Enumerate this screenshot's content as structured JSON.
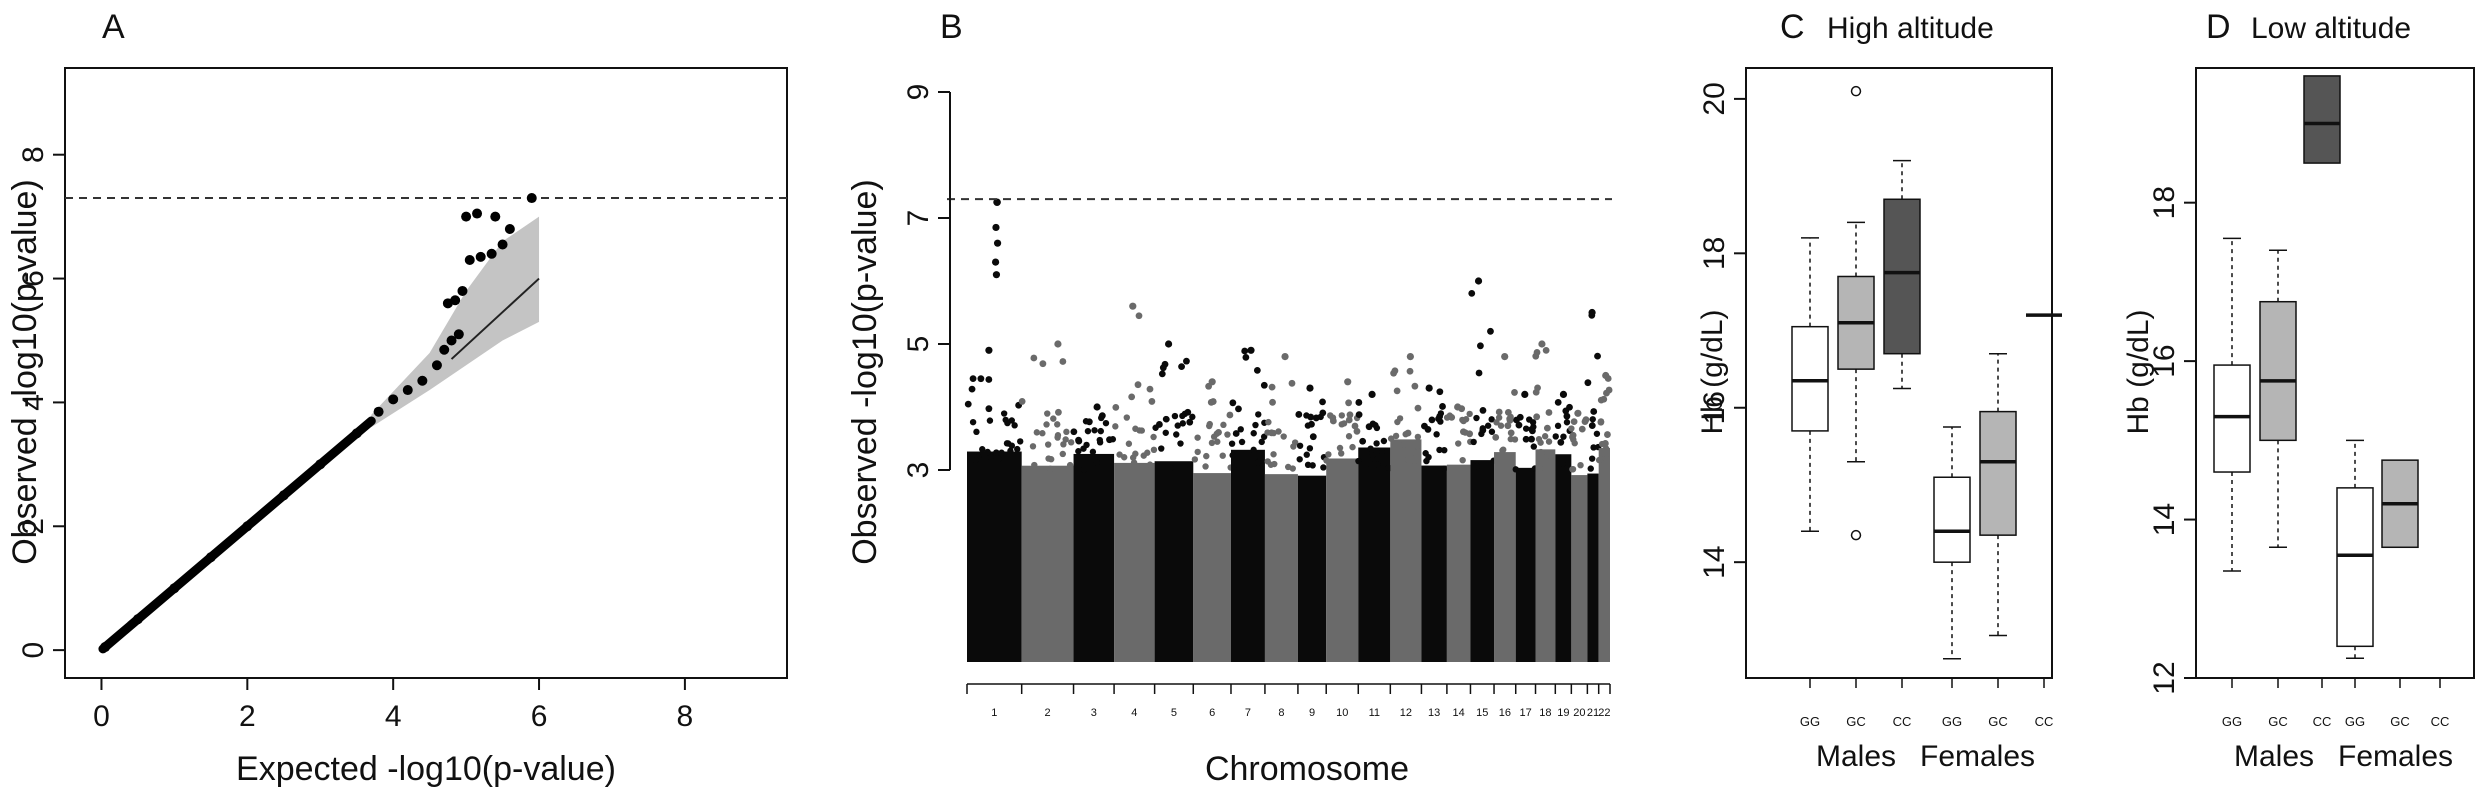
{
  "chart_data": [
    {
      "panel": "A",
      "type": "scatter",
      "xlabel": "Expected -log10(p-value)",
      "ylabel": "Observed -log10(p-value)",
      "xlim": [
        0,
        9.4
      ],
      "ylim": [
        0,
        9.4
      ],
      "xticks": [
        0,
        2,
        4,
        6,
        8
      ],
      "yticks": [
        0,
        2,
        4,
        6,
        8
      ],
      "threshold": 7.3,
      "series": [
        {
          "points": [
            [
              0.05,
              0.05
            ],
            [
              0.5,
              0.5
            ],
            [
              1.0,
              1.0
            ],
            [
              1.5,
              1.5
            ],
            [
              2.0,
              2.0
            ],
            [
              2.5,
              2.5
            ],
            [
              3.0,
              3.0
            ],
            [
              3.5,
              3.5
            ],
            [
              3.8,
              3.85
            ],
            [
              4.0,
              4.05
            ],
            [
              4.2,
              4.2
            ],
            [
              4.4,
              4.35
            ],
            [
              4.6,
              4.6
            ],
            [
              4.7,
              4.85
            ],
            [
              4.8,
              5.0
            ],
            [
              4.9,
              5.1
            ],
            [
              4.75,
              5.6
            ],
            [
              4.85,
              5.65
            ],
            [
              4.95,
              5.8
            ],
            [
              5.05,
              6.3
            ],
            [
              5.2,
              6.35
            ],
            [
              5.35,
              6.4
            ],
            [
              5.5,
              6.55
            ],
            [
              5.0,
              7.0
            ],
            [
              5.15,
              7.05
            ],
            [
              5.4,
              7.0
            ],
            [
              5.6,
              6.8
            ],
            [
              5.9,
              7.3
            ]
          ]
        }
      ],
      "expected_line": [
        [
          4.8,
          4.7
        ],
        [
          6.0,
          6.0
        ]
      ],
      "ci_band": [
        [
          3.7,
          3.6,
          3.8
        ],
        [
          4.5,
          4.2,
          4.8
        ],
        [
          5.0,
          4.6,
          5.8
        ],
        [
          5.5,
          5.0,
          6.6
        ],
        [
          6.0,
          5.3,
          7.0
        ]
      ]
    },
    {
      "panel": "B",
      "type": "scatter",
      "xlabel": "Chromosome",
      "ylabel": "Observed -log10(p-value)",
      "yticks": [
        3,
        5,
        7,
        9
      ],
      "ylim": [
        0,
        9
      ],
      "threshold": 7.3,
      "categories": [
        "1",
        "2",
        "3",
        "4",
        "5",
        "6",
        "7",
        "8",
        "9",
        "10",
        "11",
        "12",
        "13",
        "14",
        "15",
        "16",
        "17",
        "18",
        "19",
        "20",
        "21",
        "22"
      ],
      "chromosome_peaks": [
        4.9,
        5.0,
        4.0,
        5.6,
        5.0,
        4.4,
        4.9,
        4.8,
        4.3,
        4.4,
        4.2,
        4.8,
        4.3,
        4.0,
        6.0,
        4.8,
        4.2,
        5.0,
        4.2,
        3.9,
        5.5,
        4.5
      ],
      "top_hit": {
        "chromosome": "1",
        "value": 7.25
      },
      "secondary_hits": [
        6.85,
        6.6,
        6.3,
        6.1
      ]
    },
    {
      "panel": "C",
      "type": "box",
      "title": "High altitude",
      "ylabel": "Hb (g/dL)",
      "ylim": [
        12.5,
        20.4
      ],
      "yticks": [
        14,
        16,
        18,
        20
      ],
      "categories": [
        "GG",
        "GC",
        "CC",
        "GG",
        "GC",
        "CC"
      ],
      "groups": [
        "Males",
        "Females"
      ],
      "boxes": [
        {
          "min": 14.4,
          "q1": 15.7,
          "median": 16.35,
          "q3": 17.05,
          "max": 18.2,
          "fill": "#ffffff",
          "outliers": []
        },
        {
          "min": 15.3,
          "q1": 16.5,
          "median": 17.1,
          "q3": 17.7,
          "max": 18.4,
          "fill": "#b5b5b5",
          "outliers": [
            20.1,
            14.35
          ]
        },
        {
          "min": 16.25,
          "q1": 16.7,
          "median": 17.75,
          "q3": 18.7,
          "max": 19.2,
          "fill": "#555555",
          "outliers": []
        },
        {
          "min": 12.75,
          "q1": 14.0,
          "median": 14.4,
          "q3": 15.1,
          "max": 15.75,
          "fill": "#ffffff",
          "outliers": []
        },
        {
          "min": 13.05,
          "q1": 14.35,
          "median": 15.3,
          "q3": 15.95,
          "max": 16.7,
          "fill": "#b5b5b5",
          "outliers": []
        },
        {
          "min": 17.2,
          "q1": 17.2,
          "median": 17.2,
          "q3": 17.2,
          "max": 17.2,
          "fill": "#555555",
          "outliers": []
        }
      ]
    },
    {
      "panel": "D",
      "type": "box",
      "title": "Low altitude",
      "ylabel": "Hb (g/dL)",
      "ylim": [
        12.0,
        19.7
      ],
      "yticks": [
        12,
        14,
        16,
        18
      ],
      "categories": [
        "GG",
        "GC",
        "CC",
        "GG",
        "GC",
        "CC"
      ],
      "groups": [
        "Males",
        "Females"
      ],
      "boxes": [
        {
          "min": 13.35,
          "q1": 14.6,
          "median": 15.3,
          "q3": 15.95,
          "max": 17.55,
          "fill": "#ffffff",
          "outliers": []
        },
        {
          "min": 13.65,
          "q1": 15.0,
          "median": 15.75,
          "q3": 16.75,
          "max": 17.4,
          "fill": "#b5b5b5",
          "outliers": []
        },
        {
          "min": 18.5,
          "q1": 18.5,
          "median": 19.0,
          "q3": 19.6,
          "max": 19.6,
          "fill": "#555555",
          "outliers": []
        },
        {
          "min": 12.25,
          "q1": 12.4,
          "median": 13.55,
          "q3": 14.4,
          "max": 15.0,
          "fill": "#ffffff",
          "outliers": []
        },
        {
          "min": 13.65,
          "q1": 13.65,
          "median": 14.2,
          "q3": 14.75,
          "max": 14.75,
          "fill": "#b5b5b5",
          "outliers": []
        }
      ]
    }
  ],
  "labels": {
    "A": "A",
    "B": "B",
    "C": "C",
    "D": "D",
    "C_title": "High altitude",
    "D_title": "Low altitude",
    "A_xlabel": "Expected -log10(p-value)",
    "A_ylabel": "Observed -log10(p-value)",
    "B_xlabel": "Chromosome",
    "B_ylabel": "Observed -log10(p-value)",
    "hb_label": "Hb (g/dL)",
    "males": "Males",
    "females": "Females"
  }
}
